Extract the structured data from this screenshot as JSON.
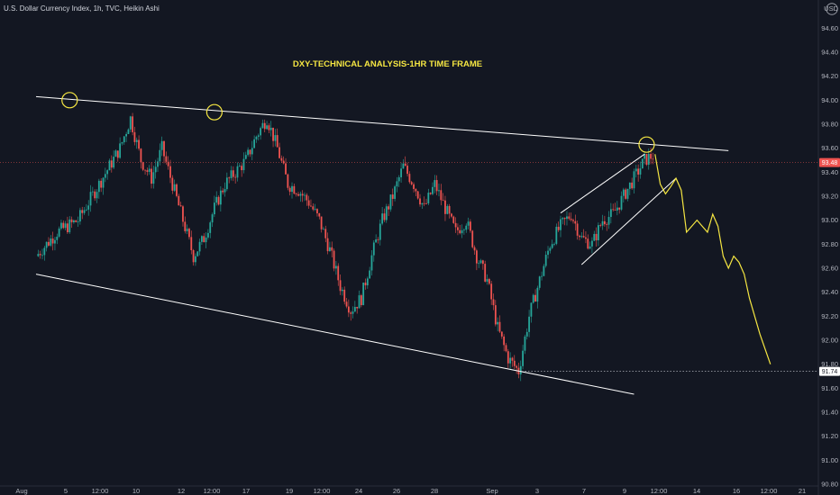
{
  "header": {
    "symbol": "U.S. Dollar Currency Index, 1h, TVC, Heikin Ashi"
  },
  "currency_label": "USD",
  "colors": {
    "background": "#131722",
    "bull": "#26a69a",
    "bear": "#ef5350",
    "annotation": "#f5e642",
    "trendline": "#ffffff"
  },
  "chart_data": {
    "type": "candlestick",
    "title": "DXY-TECHNICAL ANALYSIS-1HR TIME FRAME",
    "ylim": [
      90.8,
      94.7
    ],
    "y_ticks": [
      "94.60",
      "94.40",
      "94.20",
      "94.00",
      "93.80",
      "93.60",
      "93.40",
      "93.20",
      "93.00",
      "92.80",
      "92.60",
      "92.40",
      "92.20",
      "92.00",
      "91.80",
      "91.60",
      "91.40",
      "91.20",
      "91.00",
      "90.80"
    ],
    "x_ticks": [
      "Aug",
      "5",
      "12:00",
      "10",
      "12",
      "12:00",
      "17",
      "19",
      "12:00",
      "24",
      "26",
      "28",
      "Sep",
      "3",
      "7",
      "9",
      "12:00",
      "14",
      "16",
      "12:00",
      "21"
    ],
    "price_tags": [
      {
        "label": "93.48",
        "value": 93.48,
        "color": "#ef5350"
      },
      {
        "label": "91.74",
        "value": 91.74,
        "color": "#ffffff"
      }
    ],
    "price_path": [
      [
        0,
        92.7
      ],
      [
        2,
        92.9
      ],
      [
        4,
        93.0
      ],
      [
        6,
        93.3
      ],
      [
        8,
        93.6
      ],
      [
        9,
        93.85
      ],
      [
        10,
        93.5
      ],
      [
        11,
        93.35
      ],
      [
        12,
        93.6
      ],
      [
        13,
        93.3
      ],
      [
        14,
        93.0
      ],
      [
        15,
        92.7
      ],
      [
        16,
        92.85
      ],
      [
        17,
        93.1
      ],
      [
        18,
        93.3
      ],
      [
        19,
        93.4
      ],
      [
        20,
        93.5
      ],
      [
        21,
        93.7
      ],
      [
        22,
        93.85
      ],
      [
        23,
        93.6
      ],
      [
        24,
        93.3
      ],
      [
        25,
        93.25
      ],
      [
        26,
        93.15
      ],
      [
        27,
        93.0
      ],
      [
        28,
        92.75
      ],
      [
        29,
        92.45
      ],
      [
        30,
        92.25
      ],
      [
        31,
        92.35
      ],
      [
        32,
        92.7
      ],
      [
        33,
        93.0
      ],
      [
        34,
        93.2
      ],
      [
        35,
        93.45
      ],
      [
        36,
        93.3
      ],
      [
        37,
        93.1
      ],
      [
        38,
        93.3
      ],
      [
        39,
        93.1
      ],
      [
        40,
        92.9
      ],
      [
        41,
        93.0
      ],
      [
        42,
        92.7
      ],
      [
        43,
        92.5
      ],
      [
        44,
        92.1
      ],
      [
        45,
        91.85
      ],
      [
        46,
        91.74
      ],
      [
        47,
        92.2
      ],
      [
        48,
        92.5
      ],
      [
        49,
        92.8
      ],
      [
        50,
        92.95
      ],
      [
        51,
        93.05
      ],
      [
        52,
        92.85
      ],
      [
        53,
        92.8
      ],
      [
        54,
        93.0
      ],
      [
        55,
        93.05
      ],
      [
        56,
        93.2
      ],
      [
        57,
        93.35
      ],
      [
        58,
        93.5
      ],
      [
        59,
        93.55
      ]
    ],
    "projection_path": [
      [
        59,
        93.55
      ],
      [
        59.5,
        93.3
      ],
      [
        60,
        93.22
      ],
      [
        60.5,
        93.28
      ],
      [
        61,
        93.35
      ],
      [
        61.5,
        93.25
      ],
      [
        62,
        92.9
      ],
      [
        62.5,
        92.95
      ],
      [
        63,
        93.0
      ],
      [
        63.5,
        92.95
      ],
      [
        64,
        92.9
      ],
      [
        64.5,
        93.05
      ],
      [
        65,
        92.95
      ],
      [
        65.5,
        92.7
      ],
      [
        66,
        92.6
      ],
      [
        66.5,
        92.7
      ],
      [
        67,
        92.65
      ],
      [
        67.5,
        92.55
      ],
      [
        68,
        92.35
      ],
      [
        69,
        92.05
      ],
      [
        70,
        91.8
      ]
    ],
    "trendlines": [
      {
        "name": "upper-resistance",
        "points": [
          [
            0,
            94.03
          ],
          [
            66,
            93.58
          ]
        ]
      },
      {
        "name": "lower-support",
        "points": [
          [
            0,
            92.55
          ],
          [
            57,
            91.55
          ]
        ]
      },
      {
        "name": "channel-upper",
        "points": [
          [
            50,
            93.06
          ],
          [
            58,
            93.55
          ]
        ]
      },
      {
        "name": "channel-lower",
        "points": [
          [
            52,
            92.63
          ],
          [
            61,
            93.35
          ]
        ]
      }
    ],
    "circles": [
      {
        "x": 3.2,
        "y": 94.0
      },
      {
        "x": 17,
        "y": 93.9
      },
      {
        "x": 58.2,
        "y": 93.63
      }
    ],
    "hline": {
      "value": 91.74,
      "from_x": 46
    }
  }
}
